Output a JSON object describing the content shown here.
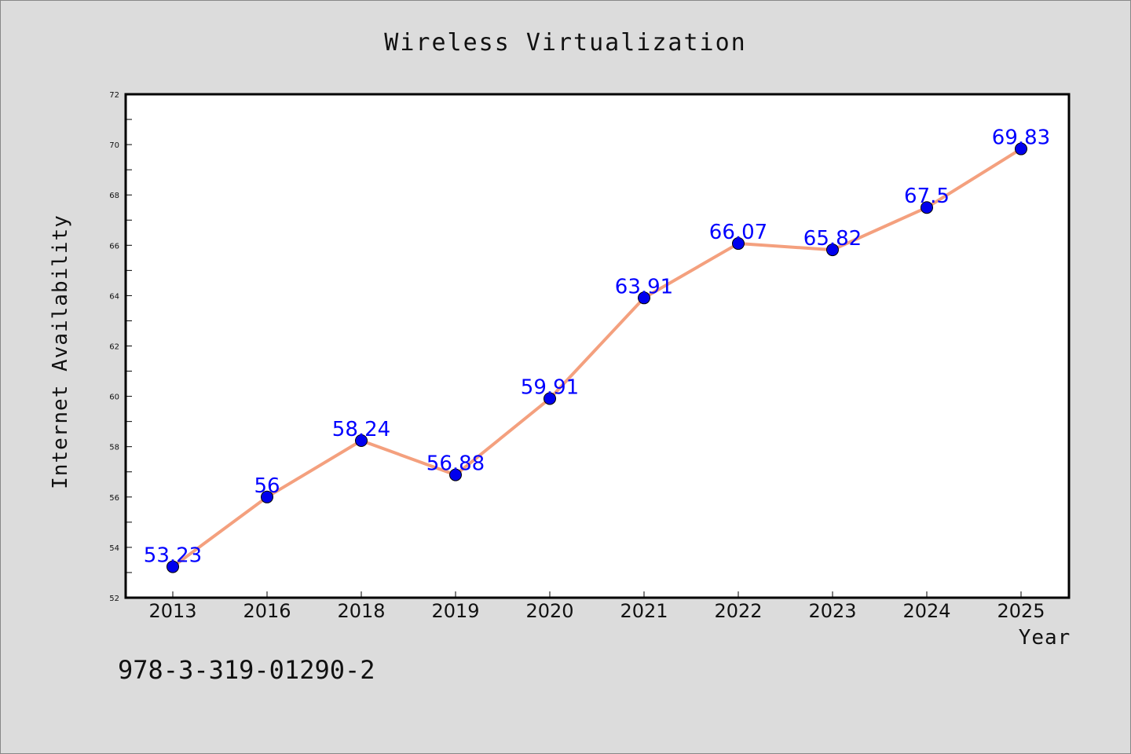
{
  "chart_data": {
    "type": "line",
    "title": "Wireless Virtualization",
    "xlabel": "Year",
    "ylabel": "Internet Availability",
    "categories": [
      "2013",
      "2016",
      "2018",
      "2019",
      "2020",
      "2021",
      "2022",
      "2023",
      "2024",
      "2025"
    ],
    "series": [
      {
        "values": [
          53.23,
          56,
          58.24,
          56.88,
          59.91,
          63.91,
          66.07,
          65.82,
          67.5,
          69.83
        ],
        "data_labels": [
          "53.23",
          "56",
          "58.24",
          "56.88",
          "59.91",
          "63.91",
          "66.07",
          "65.82",
          "67.5",
          "69.83"
        ],
        "line_color": "#f4a07e",
        "marker_color": "#0000ee"
      }
    ],
    "ylim": [
      52,
      72
    ],
    "yticks": [
      52,
      54,
      56,
      58,
      60,
      62,
      64,
      66,
      68,
      70,
      72
    ],
    "ytick_labels": [
      "52",
      "54",
      "56",
      "58",
      "60",
      "62",
      "64",
      "66",
      "68",
      "70",
      "72"
    ],
    "grid": false,
    "data_label_color": "#0000ff"
  },
  "footer": {
    "text": "978-3-319-01290-2"
  },
  "colors": {
    "background": "#dcdcdc",
    "plot_area": "#ffffff",
    "axis": "#000000"
  }
}
